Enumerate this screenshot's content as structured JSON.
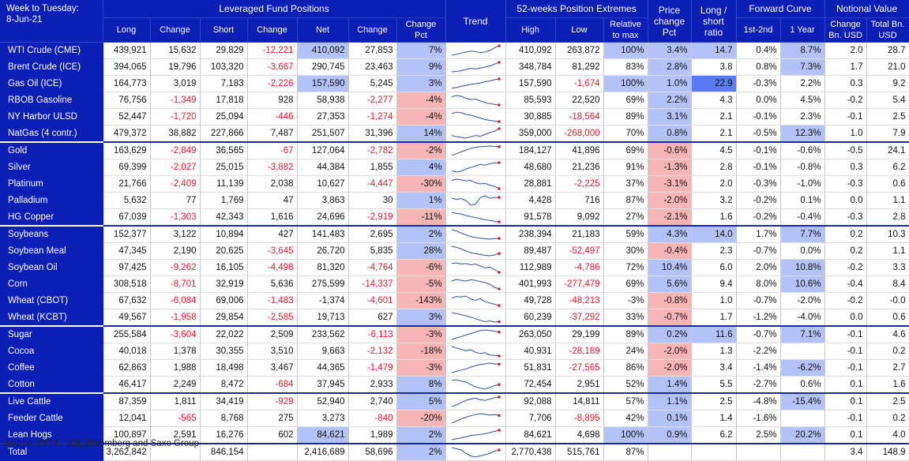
{
  "header": {
    "week_label": "Week to Tuesday:",
    "date": "8-Jun-21",
    "groups": {
      "leveraged": "Leveraged Fund Positions",
      "extremes": "52-weeks Position Extremes",
      "price_change": "Price change Pct",
      "ls_ratio": "Long / short ratio",
      "forward": "Forward Curve",
      "notional": "Notional Value"
    },
    "cols": {
      "long": "Long",
      "change": "Change",
      "short": "Short",
      "change2": "Change",
      "net": "Net",
      "change3": "Change",
      "change_pct": "Change Pct",
      "trend": "Trend",
      "high": "High",
      "low": "Low",
      "relmax": "Relative to max",
      "fc1": "1st-2nd",
      "fc2": "1 Year",
      "nv_change": "Change Bn. USD",
      "nv_total": "Total Bn. USD"
    }
  },
  "colors": {
    "header_bg": "#0b1fb5",
    "negative": "#e8192c",
    "highlight_blue": "#b3c2f7",
    "strong_blue": "#5b7cf0",
    "highlight_red": "#f7b6b6"
  },
  "rows": [
    {
      "name": "WTI Crude (CME)",
      "long": "439,921",
      "chg": "15,632",
      "short": "29,829",
      "chg2": "-12,221",
      "net": "410,092",
      "chg3": "27,853",
      "pct": "7%",
      "high": "410,092",
      "low": "263,872",
      "rel": "100%",
      "price": "3.4%",
      "ratio": "14.7",
      "fc1": "0.4%",
      "fc2": "8.7%",
      "nvc": "2.0",
      "nvt": "28.7",
      "trend": [
        40,
        45,
        50,
        55,
        60,
        58,
        52,
        56,
        62,
        75,
        85
      ]
    },
    {
      "name": "Brent Crude (ICE)",
      "long": "394,065",
      "chg": "19,796",
      "short": "103,320",
      "chg2": "-3,667",
      "net": "290,745",
      "chg3": "23,463",
      "pct": "9%",
      "high": "348,784",
      "low": "81,292",
      "rel": "83%",
      "price": "2.8%",
      "ratio": "3.8",
      "fc1": "0.8%",
      "fc2": "7.3%",
      "nvc": "1.7",
      "nvt": "21.0",
      "trend": [
        40,
        42,
        45,
        50,
        55,
        52,
        56,
        60,
        65,
        72,
        80
      ]
    },
    {
      "name": "Gas Oil (ICE)",
      "long": "164,773",
      "chg": "3,019",
      "short": "7,183",
      "chg2": "-2,226",
      "net": "157,590",
      "chg3": "5,245",
      "pct": "3%",
      "high": "157,590",
      "low": "-1,674",
      "rel": "100%",
      "price": "1.0%",
      "ratio": "22.9",
      "fc1": "-0.3%",
      "fc2": "2.2%",
      "nvc": "0.3",
      "nvt": "9.2",
      "trend": [
        35,
        40,
        45,
        50,
        55,
        58,
        62,
        68,
        72,
        78,
        82
      ]
    },
    {
      "name": "RBOB Gasoline",
      "long": "76,756",
      "chg": "-1,349",
      "short": "17,818",
      "chg2": "928",
      "net": "58,938",
      "chg3": "-2,277",
      "pct": "-4%",
      "high": "85,593",
      "low": "22,520",
      "rel": "69%",
      "price": "2.2%",
      "ratio": "4.3",
      "fc1": "0.0%",
      "fc2": "4.5%",
      "nvc": "-0.2",
      "nvt": "5.4",
      "trend": [
        70,
        75,
        72,
        65,
        60,
        62,
        55,
        50,
        45,
        42,
        40
      ]
    },
    {
      "name": "NY Harbor ULSD",
      "long": "52,447",
      "chg": "-1,720",
      "short": "25,094",
      "chg2": "-446",
      "net": "27,353",
      "chg3": "-1,274",
      "pct": "-4%",
      "high": "30,885",
      "low": "-18,564",
      "rel": "89%",
      "price": "3.1%",
      "ratio": "2.1",
      "fc1": "-0.1%",
      "fc2": "2.3%",
      "nvc": "-0.1",
      "nvt": "2.5",
      "trend": [
        75,
        80,
        78,
        72,
        70,
        65,
        60,
        55,
        52,
        50,
        48
      ]
    },
    {
      "name": "NatGas (4 contr.)",
      "long": "479,372",
      "chg": "38,882",
      "short": "227,866",
      "chg2": "7,487",
      "net": "251,507",
      "chg3": "31,396",
      "pct": "14%",
      "high": "359,000",
      "low": "-268,000",
      "rel": "70%",
      "price": "0.8%",
      "ratio": "2.1",
      "fc1": "-0.5%",
      "fc2": "12.3%",
      "nvc": "1.0",
      "nvt": "7.9",
      "trend": [
        45,
        40,
        38,
        35,
        40,
        45,
        42,
        48,
        55,
        60,
        70
      ]
    },
    {
      "name": "Gold",
      "long": "163,629",
      "chg": "-2,849",
      "short": "36,565",
      "chg2": "-67",
      "net": "127,064",
      "chg3": "-2,782",
      "pct": "-2%",
      "high": "184,127",
      "low": "41,896",
      "rel": "69%",
      "price": "-0.6%",
      "ratio": "4.5",
      "fc1": "-0.1%",
      "fc2": "-0.6%",
      "nvc": "-0.5",
      "nvt": "24.1",
      "trend": [
        30,
        40,
        50,
        60,
        70,
        75,
        78,
        80,
        82,
        80,
        79
      ],
      "grp": true
    },
    {
      "name": "Silver",
      "long": "69,399",
      "chg": "-2,027",
      "short": "25,015",
      "chg2": "-3,882",
      "net": "44,384",
      "chg3": "1,855",
      "pct": "4%",
      "high": "48,680",
      "low": "21,236",
      "rel": "91%",
      "price": "-1.3%",
      "ratio": "2.8",
      "fc1": "-0.1%",
      "fc2": "-0.8%",
      "nvc": "0.3",
      "nvt": "6.2",
      "trend": [
        40,
        35,
        38,
        45,
        50,
        55,
        60,
        58,
        62,
        65,
        66
      ]
    },
    {
      "name": "Platinum",
      "long": "21,766",
      "chg": "-2,409",
      "short": "11,139",
      "chg2": "2,038",
      "net": "10,627",
      "chg3": "-4,447",
      "pct": "-30%",
      "high": "28,881",
      "low": "-2,225",
      "rel": "37%",
      "price": "-3.1%",
      "ratio": "2.0",
      "fc1": "-0.3%",
      "fc2": "-1.0%",
      "nvc": "-0.3",
      "nvt": "0.6",
      "trend": [
        70,
        75,
        72,
        68,
        70,
        60,
        55,
        58,
        50,
        45,
        35
      ]
    },
    {
      "name": "Palladium",
      "long": "5,632",
      "chg": "77",
      "short": "1,769",
      "chg2": "47",
      "net": "3,863",
      "chg3": "30",
      "pct": "1%",
      "high": "4,428",
      "low": "716",
      "rel": "87%",
      "price": "-2.0%",
      "ratio": "3.2",
      "fc1": "-0.2%",
      "fc2": "0.1%",
      "nvc": "0.0",
      "nvt": "1.1",
      "trend": [
        60,
        55,
        58,
        50,
        30,
        35,
        62,
        70,
        60,
        62,
        63
      ]
    },
    {
      "name": "HG Copper",
      "long": "67,039",
      "chg": "-1,303",
      "short": "42,343",
      "chg2": "1,616",
      "net": "24,696",
      "chg3": "-2,919",
      "pct": "-11%",
      "high": "91,578",
      "low": "9,092",
      "rel": "27%",
      "price": "-2.1%",
      "ratio": "1.6",
      "fc1": "-0.2%",
      "fc2": "-0.4%",
      "nvc": "-0.3",
      "nvt": "2.8",
      "trend": [
        80,
        75,
        72,
        65,
        60,
        55,
        50,
        45,
        42,
        38,
        35
      ]
    },
    {
      "name": "Soybeans",
      "long": "152,377",
      "chg": "3,122",
      "short": "10,894",
      "chg2": "427",
      "net": "141,483",
      "chg3": "2,695",
      "pct": "2%",
      "high": "238,394",
      "low": "21,183",
      "rel": "59%",
      "price": "4.3%",
      "ratio": "14.0",
      "fc1": "1.7%",
      "fc2": "7.7%",
      "nvc": "0.2",
      "nvt": "10.3",
      "trend": [
        75,
        70,
        62,
        55,
        48,
        45,
        42,
        40,
        38,
        40,
        41
      ],
      "grp": true
    },
    {
      "name": "Soybean Meal",
      "long": "47,345",
      "chg": "2,190",
      "short": "20,625",
      "chg2": "-3,645",
      "net": "26,720",
      "chg3": "5,835",
      "pct": "28%",
      "high": "89,487",
      "low": "-52,497",
      "rel": "30%",
      "price": "-0.4%",
      "ratio": "2.3",
      "fc1": "-0.7%",
      "fc2": "0.0%",
      "nvc": "0.2",
      "nvt": "1.1",
      "trend": [
        80,
        75,
        65,
        55,
        45,
        40,
        35,
        30,
        28,
        32,
        40
      ]
    },
    {
      "name": "Soybean Oil",
      "long": "97,425",
      "chg": "-9,262",
      "short": "16,105",
      "chg2": "-4,498",
      "net": "81,320",
      "chg3": "-4,764",
      "pct": "-6%",
      "high": "112,989",
      "low": "-4,786",
      "rel": "72%",
      "price": "10.4%",
      "ratio": "6.0",
      "fc1": "2.0%",
      "fc2": "10.8%",
      "nvc": "-0.2",
      "nvt": "3.3",
      "trend": [
        70,
        72,
        68,
        70,
        65,
        68,
        62,
        55,
        58,
        50,
        40
      ]
    },
    {
      "name": "Corn",
      "long": "308,518",
      "chg": "-8,701",
      "short": "32,919",
      "chg2": "5,636",
      "net": "275,599",
      "chg3": "-14,337",
      "pct": "-5%",
      "high": "401,993",
      "low": "-277,479",
      "rel": "69%",
      "price": "5.6%",
      "ratio": "9.4",
      "fc1": "8.0%",
      "fc2": "10.6%",
      "nvc": "-0.4",
      "nvt": "8.4",
      "trend": [
        70,
        75,
        72,
        70,
        74,
        72,
        68,
        65,
        60,
        50,
        45
      ]
    },
    {
      "name": "Wheat (CBOT)",
      "long": "67,632",
      "chg": "-6,084",
      "short": "69,006",
      "chg2": "-1,483",
      "net": "-1,374",
      "chg3": "-4,601",
      "pct": "-143%",
      "high": "49,728",
      "low": "-48,213",
      "rel": "-3%",
      "price": "-0.8%",
      "ratio": "1.0",
      "fc1": "-0.7%",
      "fc2": "-2.0%",
      "nvc": "-0.2",
      "nvt": "-0.0",
      "trend": [
        65,
        70,
        68,
        72,
        60,
        55,
        62,
        50,
        45,
        40,
        35
      ]
    },
    {
      "name": "Wheat (KCBT)",
      "long": "49,567",
      "chg": "-1,958",
      "short": "29,854",
      "chg2": "-2,585",
      "net": "19,713",
      "chg3": "627",
      "pct": "3%",
      "high": "60,239",
      "low": "-37,292",
      "rel": "33%",
      "price": "-0.7%",
      "ratio": "1.7",
      "fc1": "-1.2%",
      "fc2": "-4.0%",
      "nvc": "0.0",
      "nvt": "0.6",
      "trend": [
        75,
        72,
        68,
        65,
        60,
        55,
        50,
        45,
        48,
        44,
        45
      ]
    },
    {
      "name": "Sugar",
      "long": "255,584",
      "chg": "-3,604",
      "short": "22,022",
      "chg2": "2,509",
      "net": "233,562",
      "chg3": "-6,113",
      "pct": "-3%",
      "high": "263,050",
      "low": "29,199",
      "rel": "89%",
      "price": "0.2%",
      "ratio": "11.6",
      "fc1": "-0.7%",
      "fc2": "7.1%",
      "nvc": "-0.1",
      "nvt": "4.6",
      "trend": [
        40,
        45,
        50,
        55,
        60,
        65,
        70,
        72,
        70,
        68,
        65
      ],
      "grp": true
    },
    {
      "name": "Cocoa",
      "long": "40,018",
      "chg": "1,378",
      "short": "30,355",
      "chg2": "3,510",
      "net": "9,663",
      "chg3": "-2,132",
      "pct": "-18%",
      "high": "40,931",
      "low": "-28,189",
      "rel": "24%",
      "price": "-2.0%",
      "ratio": "1.3",
      "fc1": "-2.2%",
      "fc2": "",
      "nvc": "-0.1",
      "nvt": "0.2",
      "trend": [
        70,
        65,
        60,
        55,
        58,
        50,
        45,
        48,
        40,
        38,
        36
      ]
    },
    {
      "name": "Coffee",
      "long": "62,863",
      "chg": "1,988",
      "short": "18,498",
      "chg2": "3,467",
      "net": "44,365",
      "chg3": "-1,479",
      "pct": "-3%",
      "high": "51,831",
      "low": "-27,565",
      "rel": "86%",
      "price": "-2.0%",
      "ratio": "3.4",
      "fc1": "-1.4%",
      "fc2": "-6.2%",
      "nvc": "-0.1",
      "nvt": "2.7",
      "trend": [
        40,
        45,
        50,
        55,
        62,
        68,
        72,
        75,
        78,
        75,
        74
      ]
    },
    {
      "name": "Cotton",
      "long": "46,417",
      "chg": "2,249",
      "short": "8,472",
      "chg2": "-684",
      "net": "37,945",
      "chg3": "2,933",
      "pct": "8%",
      "high": "72,454",
      "low": "2,951",
      "rel": "52%",
      "price": "1.4%",
      "ratio": "5.5",
      "fc1": "-2.7%",
      "fc2": "0.6%",
      "nvc": "0.1",
      "nvt": "1.6",
      "trend": [
        70,
        72,
        68,
        65,
        58,
        52,
        48,
        45,
        50,
        55,
        58
      ]
    },
    {
      "name": "Live Cattle",
      "long": "87,359",
      "chg": "1,811",
      "short": "34,419",
      "chg2": "-929",
      "net": "52,940",
      "chg3": "2,740",
      "pct": "5%",
      "high": "92,088",
      "low": "14,811",
      "rel": "57%",
      "price": "1.1%",
      "ratio": "2.5",
      "fc1": "-4.8%",
      "fc2": "-15.4%",
      "nvc": "0.1",
      "nvt": "2.5",
      "trend": [
        40,
        45,
        52,
        58,
        62,
        65,
        60,
        58,
        62,
        66,
        68
      ],
      "grp": true
    },
    {
      "name": "Feeder Cattle",
      "long": "12,041",
      "chg": "-565",
      "short": "8,768",
      "chg2": "275",
      "net": "3,273",
      "chg3": "-840",
      "pct": "-20%",
      "high": "7,706",
      "low": "-8,895",
      "rel": "42%",
      "price": "0.1%",
      "ratio": "1.4",
      "fc1": "-1.6%",
      "fc2": "",
      "nvc": "-0.1",
      "nvt": "0.2",
      "trend": [
        30,
        40,
        50,
        58,
        65,
        70,
        75,
        72,
        68,
        70,
        66
      ]
    },
    {
      "name": "Lean Hogs",
      "long": "100,897",
      "chg": "2,591",
      "short": "16,276",
      "chg2": "602",
      "net": "84,621",
      "chg3": "1,989",
      "pct": "2%",
      "high": "84,621",
      "low": "4,698",
      "rel": "100%",
      "price": "0.9%",
      "ratio": "6.2",
      "fc1": "2.5%",
      "fc2": "20.2%",
      "nvc": "0.1",
      "nvt": "4.0",
      "trend": [
        40,
        44,
        48,
        52,
        58,
        60,
        62,
        65,
        70,
        75,
        80
      ]
    }
  ],
  "total": {
    "name": "Total",
    "long": "3,262,842",
    "chg": "",
    "short": "846,154",
    "chg2": "",
    "net": "2,416,689",
    "chg3": "58,696",
    "pct": "2%",
    "high": "2,770,438",
    "low": "515,761",
    "rel": "87%",
    "price": "",
    "ratio": "",
    "fc1": "",
    "fc2": "",
    "nvc": "3.4",
    "nvt": "148.9",
    "trend": [
      70,
      65,
      60,
      45,
      35,
      30,
      35,
      40,
      45,
      55,
      60
    ]
  },
  "source": "Source: CFTC, ICE, Bloomberg and Saxo Group"
}
